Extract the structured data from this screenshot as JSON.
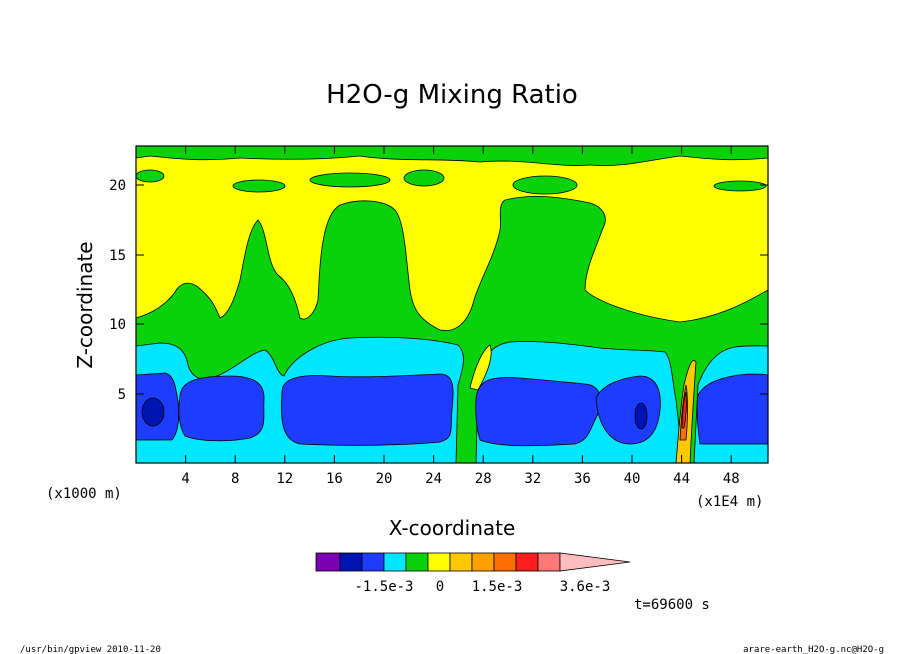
{
  "chart_data": {
    "type": "contour",
    "title": "H2O-g Mixing Ratio",
    "xlabel": "X-coordinate",
    "ylabel": "Z-coordinate",
    "x_ticks": [
      "4",
      "8",
      "12",
      "16",
      "20",
      "24",
      "28",
      "32",
      "36",
      "40",
      "44",
      "48"
    ],
    "y_ticks": [
      "5",
      "10",
      "15",
      "20"
    ],
    "xlim": [
      0,
      51
    ],
    "ylim": [
      0,
      22.8
    ],
    "z_unit_label": "(x1000 m)",
    "x_unit_label": "(x1E4 m)",
    "colorbar": {
      "colors": [
        "#7b00b4",
        "#0014b4",
        "#1e3cff",
        "#00e6ff",
        "#0ad20a",
        "#ffff00",
        "#ffc800",
        "#ffa000",
        "#ff6e00",
        "#ff1e1e",
        "#ff7878",
        "#ffbebe"
      ],
      "tick_labels": [
        "-1.5e-3",
        "0",
        "1.5e-3",
        "3.6e-3"
      ],
      "level_step": 0.0003
    },
    "time_label": "t=69600 s"
  },
  "footer": {
    "left": "/usr/bin/gpview  2010-11-20",
    "right": "arare-earth_H2O-g.nc@H2O-g"
  }
}
